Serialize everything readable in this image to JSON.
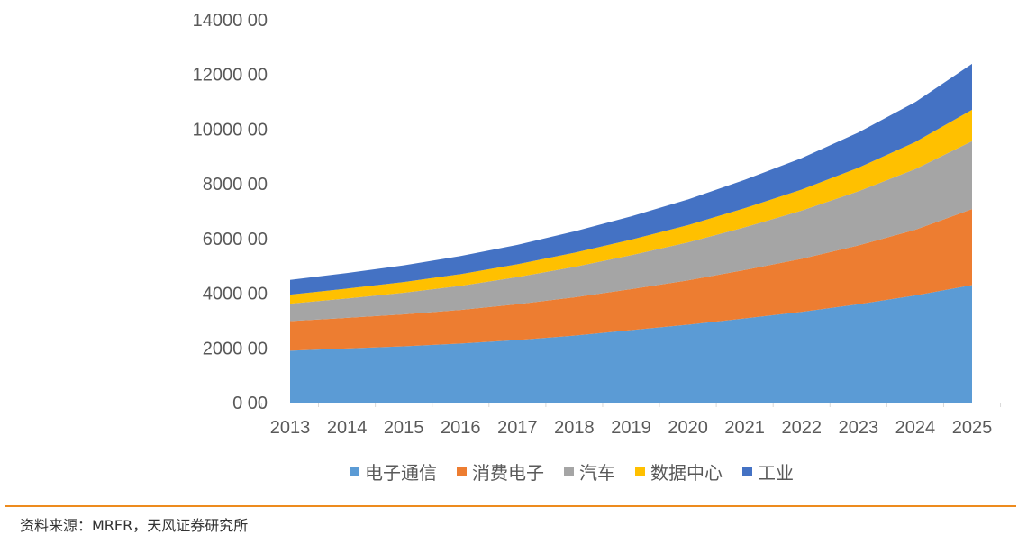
{
  "chart_data": {
    "type": "area",
    "stacked": true,
    "title": "",
    "xlabel": "",
    "ylabel": "",
    "categories": [
      "2013",
      "2014",
      "2015",
      "2016",
      "2017",
      "2018",
      "2019",
      "2020",
      "2021",
      "2022",
      "2023",
      "2024",
      "2025"
    ],
    "ylim": [
      0,
      14000
    ],
    "yticks": [
      0,
      2000,
      4000,
      6000,
      8000,
      10000,
      12000,
      14000
    ],
    "ytick_labels": [
      "0 00",
      "2000 00",
      "4000 00",
      "6000 00",
      "8000 00",
      "10000 00",
      "12000 00",
      "14000 00"
    ],
    "grid": false,
    "legend_position": "bottom",
    "series": [
      {
        "name": "电子通信",
        "color": "#5B9BD5",
        "values": [
          1900,
          1980,
          2060,
          2160,
          2290,
          2450,
          2650,
          2850,
          3080,
          3320,
          3600,
          3920,
          4300
        ]
      },
      {
        "name": "消费电子",
        "color": "#ED7D31",
        "values": [
          1080,
          1120,
          1170,
          1230,
          1310,
          1400,
          1500,
          1620,
          1770,
          1940,
          2150,
          2400,
          2780
        ]
      },
      {
        "name": "汽车",
        "color": "#A5A5A5",
        "values": [
          640,
          710,
          790,
          880,
          990,
          1110,
          1240,
          1390,
          1560,
          1760,
          1980,
          2220,
          2480
        ]
      },
      {
        "name": "数据中心",
        "color": "#FFC000",
        "values": [
          330,
          360,
          390,
          430,
          470,
          520,
          570,
          630,
          700,
          770,
          860,
          990,
          1150
        ]
      },
      {
        "name": "工业",
        "color": "#4472C4",
        "values": [
          540,
          570,
          610,
          660,
          710,
          780,
          850,
          940,
          1040,
          1150,
          1290,
          1460,
          1680
        ]
      }
    ]
  },
  "footer": {
    "source": "资料来源：MRFR，天风证券研究所",
    "rule_color": "#ED8B1E"
  }
}
